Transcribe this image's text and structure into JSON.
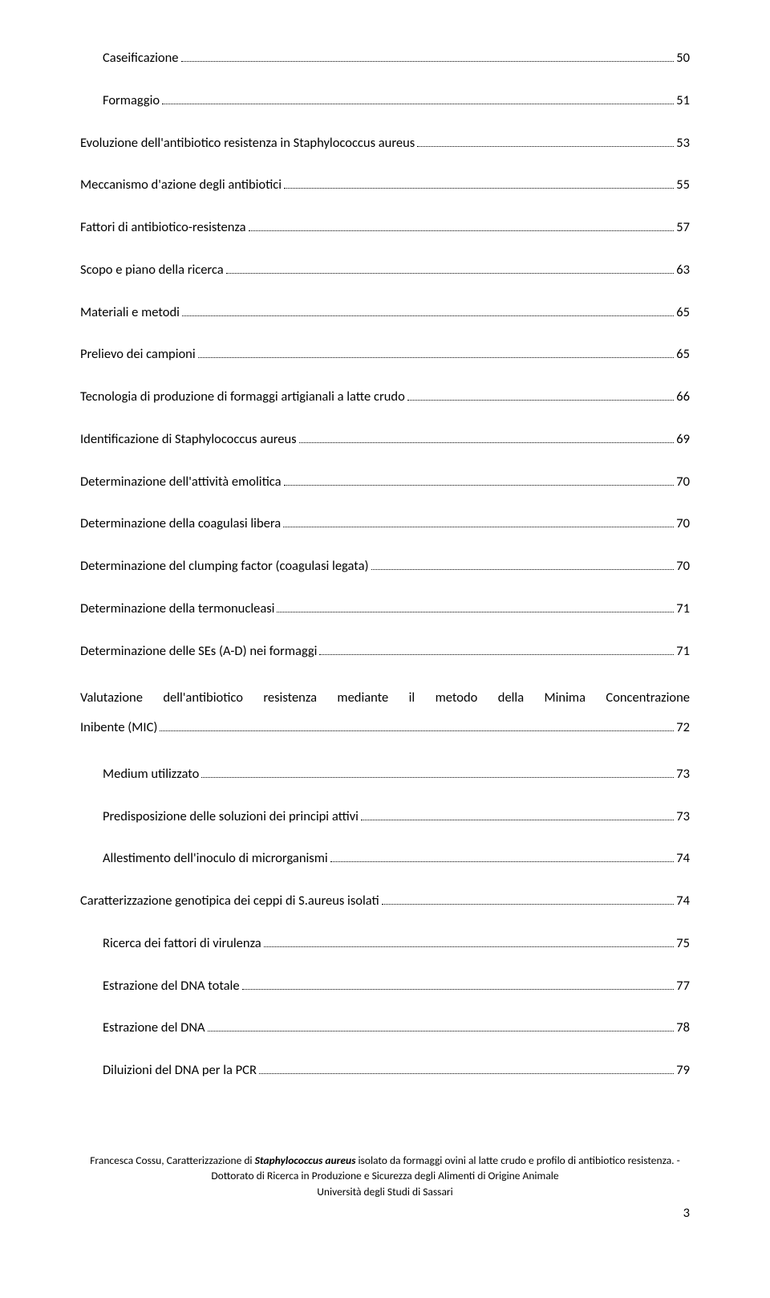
{
  "toc": [
    {
      "label": "Caseificazione",
      "page": "50",
      "indent": 1
    },
    {
      "label": "Formaggio",
      "page": "51",
      "indent": 1
    },
    {
      "label": "Evoluzione dell'antibiotico resistenza in Staphylococcus aureus",
      "page": "53",
      "indent": 0
    },
    {
      "label": "Meccanismo d'azione degli antibiotici",
      "page": "55",
      "indent": 0
    },
    {
      "label": "Fattori di antibiotico-resistenza",
      "page": "57",
      "indent": 0
    },
    {
      "label": "Scopo e piano della ricerca",
      "page": "63",
      "indent": 0
    },
    {
      "label": "Materiali e metodi",
      "page": "65",
      "indent": 0
    },
    {
      "label": "Prelievo dei campioni",
      "page": "65",
      "indent": 0
    },
    {
      "label": "Tecnologia di produzione di formaggi artigianali a latte crudo",
      "page": "66",
      "indent": 0
    },
    {
      "label": "Identificazione di Staphylococcus aureus",
      "page": "69",
      "indent": 0
    },
    {
      "label": "Determinazione dell'attività emolitica",
      "page": "70",
      "indent": 0
    },
    {
      "label": "Determinazione della coagulasi libera",
      "page": "70",
      "indent": 0
    },
    {
      "label": "Determinazione del clumping factor (coagulasi legata)",
      "page": "70",
      "indent": 0
    },
    {
      "label": "Determinazione della termonucleasi",
      "page": "71",
      "indent": 0
    },
    {
      "label": "Determinazione delle SEs (A-D) nei formaggi",
      "page": "71",
      "indent": 0
    }
  ],
  "toc_multiline": {
    "line1": "Valutazione dell'antibiotico resistenza mediante il metodo della Minima Concentrazione",
    "line2_label": "Inibente (MIC)",
    "page": "72"
  },
  "toc_after": [
    {
      "label": "Medium utilizzato",
      "page": "73",
      "indent": 1
    },
    {
      "label": "Predisposizione delle soluzioni dei principi attivi",
      "page": "73",
      "indent": 1
    },
    {
      "label": "Allestimento dell'inoculo di microrganismi",
      "page": "74",
      "indent": 1
    },
    {
      "label": "Caratterizzazione genotipica dei ceppi di S.aureus isolati",
      "page": "74",
      "indent": 0
    },
    {
      "label": "Ricerca dei fattori di virulenza",
      "page": "75",
      "indent": 1
    },
    {
      "label": "Estrazione del DNA totale",
      "page": "77",
      "indent": 1
    },
    {
      "label": "Estrazione del DNA",
      "page": "78",
      "indent": 1
    },
    {
      "label": "Diluizioni del DNA per la PCR",
      "page": "79",
      "indent": 1
    }
  ],
  "footer": {
    "part1": "Francesca Cossu, Caratterizzazione di ",
    "part2_bold_italic": "Staphylococcus aureus",
    "part3": " isolato da formaggi ovini al latte crudo e profilo di antibiotico resistenza. - Dottorato di Ricerca in Produzione e Sicurezza degli Alimenti di Origine Animale",
    "university": "Università degli Studi di Sassari"
  },
  "page_number": "3"
}
